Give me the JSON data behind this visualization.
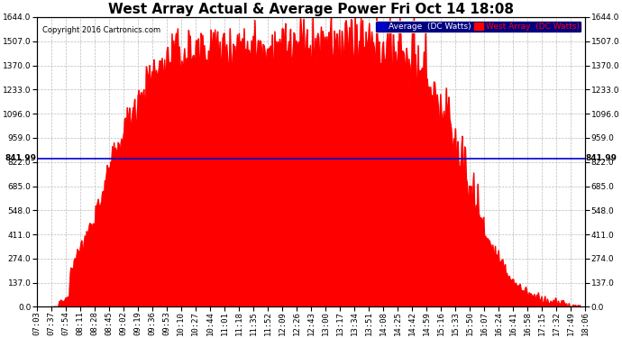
{
  "title": "West Array Actual & Average Power Fri Oct 14 18:08",
  "copyright": "Copyright 2016 Cartronics.com",
  "legend_labels": [
    "Average  (DC Watts)",
    "West Array  (DC Watts)"
  ],
  "average_value": 841.99,
  "y_max": 1644.0,
  "y_ticks": [
    0.0,
    137.0,
    274.0,
    411.0,
    548.0,
    685.0,
    822.0,
    959.0,
    1096.0,
    1233.0,
    1370.0,
    1507.0,
    1644.0
  ],
  "background_color": "#ffffff",
  "plot_bg_color": "#ffffff",
  "grid_color": "#bbbbbb",
  "fill_color": "#ff0000",
  "line_color": "#0000cc",
  "title_fontsize": 11,
  "tick_fontsize": 6.5,
  "x_tick_labels": [
    "07:03",
    "07:37",
    "07:54",
    "08:11",
    "08:28",
    "08:45",
    "09:02",
    "09:19",
    "09:36",
    "09:53",
    "10:10",
    "10:27",
    "10:44",
    "11:01",
    "11:18",
    "11:35",
    "11:52",
    "12:09",
    "12:26",
    "12:43",
    "13:00",
    "13:17",
    "13:34",
    "13:51",
    "14:08",
    "14:25",
    "14:42",
    "14:59",
    "15:16",
    "15:33",
    "15:50",
    "16:07",
    "16:24",
    "16:41",
    "16:58",
    "17:15",
    "17:32",
    "17:49",
    "18:06"
  ]
}
